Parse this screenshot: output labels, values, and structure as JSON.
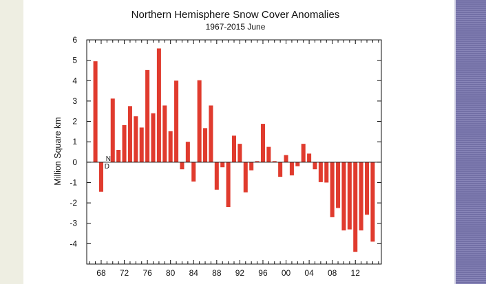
{
  "colors": {
    "bar": "#e03b2e",
    "axis": "#111111",
    "left_strip": "#eeeee2",
    "right_strip": "#7a77b0"
  },
  "chart_data": {
    "type": "bar",
    "title": "Northern Hemisphere Snow Cover Anomalies",
    "subtitle": "1967-2015 June",
    "xlabel": "",
    "ylabel": "Million Square km",
    "ylim": [
      -5,
      6
    ],
    "yticks": [
      6,
      5,
      4,
      3,
      2,
      1,
      0,
      -1,
      -2,
      -3,
      -4
    ],
    "xlim": [
      1965.5,
      2016.5
    ],
    "xticks": [
      1968,
      1972,
      1976,
      1980,
      1984,
      1988,
      1992,
      1996,
      2000,
      2004,
      2008,
      2012
    ],
    "xtick_labels": [
      "68",
      "72",
      "76",
      "80",
      "84",
      "88",
      "92",
      "96",
      "00",
      "04",
      "08",
      "12"
    ],
    "annotation": {
      "text_top": "N",
      "text_bottom": "D",
      "year": 1969
    },
    "bars": [
      {
        "year": 1967,
        "value": 4.95
      },
      {
        "year": 1968,
        "value": -1.45
      },
      {
        "year": 1970,
        "value": 3.12
      },
      {
        "year": 1971,
        "value": 0.6
      },
      {
        "year": 1972,
        "value": 1.82
      },
      {
        "year": 1973,
        "value": 2.75
      },
      {
        "year": 1974,
        "value": 2.25
      },
      {
        "year": 1975,
        "value": 1.7
      },
      {
        "year": 1976,
        "value": 4.52
      },
      {
        "year": 1977,
        "value": 2.4
      },
      {
        "year": 1978,
        "value": 5.58
      },
      {
        "year": 1979,
        "value": 2.78
      },
      {
        "year": 1980,
        "value": 1.52
      },
      {
        "year": 1981,
        "value": 4.0
      },
      {
        "year": 1982,
        "value": -0.35
      },
      {
        "year": 1983,
        "value": 1.0
      },
      {
        "year": 1984,
        "value": -0.95
      },
      {
        "year": 1985,
        "value": 4.02
      },
      {
        "year": 1986,
        "value": 1.67
      },
      {
        "year": 1987,
        "value": 2.78
      },
      {
        "year": 1988,
        "value": -1.35
      },
      {
        "year": 1989,
        "value": -0.25
      },
      {
        "year": 1990,
        "value": -2.2
      },
      {
        "year": 1991,
        "value": 1.3
      },
      {
        "year": 1992,
        "value": 0.9
      },
      {
        "year": 1993,
        "value": -1.48
      },
      {
        "year": 1994,
        "value": -0.4
      },
      {
        "year": 1995,
        "value": 0.05
      },
      {
        "year": 1996,
        "value": 1.88
      },
      {
        "year": 1997,
        "value": 0.75
      },
      {
        "year": 1998,
        "value": 0.05
      },
      {
        "year": 1999,
        "value": -0.72
      },
      {
        "year": 2000,
        "value": 0.35
      },
      {
        "year": 2001,
        "value": -0.65
      },
      {
        "year": 2002,
        "value": -0.2
      },
      {
        "year": 2003,
        "value": 0.9
      },
      {
        "year": 2004,
        "value": 0.42
      },
      {
        "year": 2005,
        "value": -0.35
      },
      {
        "year": 2006,
        "value": -0.98
      },
      {
        "year": 2007,
        "value": -1.0
      },
      {
        "year": 2008,
        "value": -2.7
      },
      {
        "year": 2009,
        "value": -2.25
      },
      {
        "year": 2010,
        "value": -3.35
      },
      {
        "year": 2011,
        "value": -3.3
      },
      {
        "year": 2012,
        "value": -4.4
      },
      {
        "year": 2013,
        "value": -3.35
      },
      {
        "year": 2014,
        "value": -2.58
      },
      {
        "year": 2015,
        "value": -3.9
      }
    ]
  }
}
